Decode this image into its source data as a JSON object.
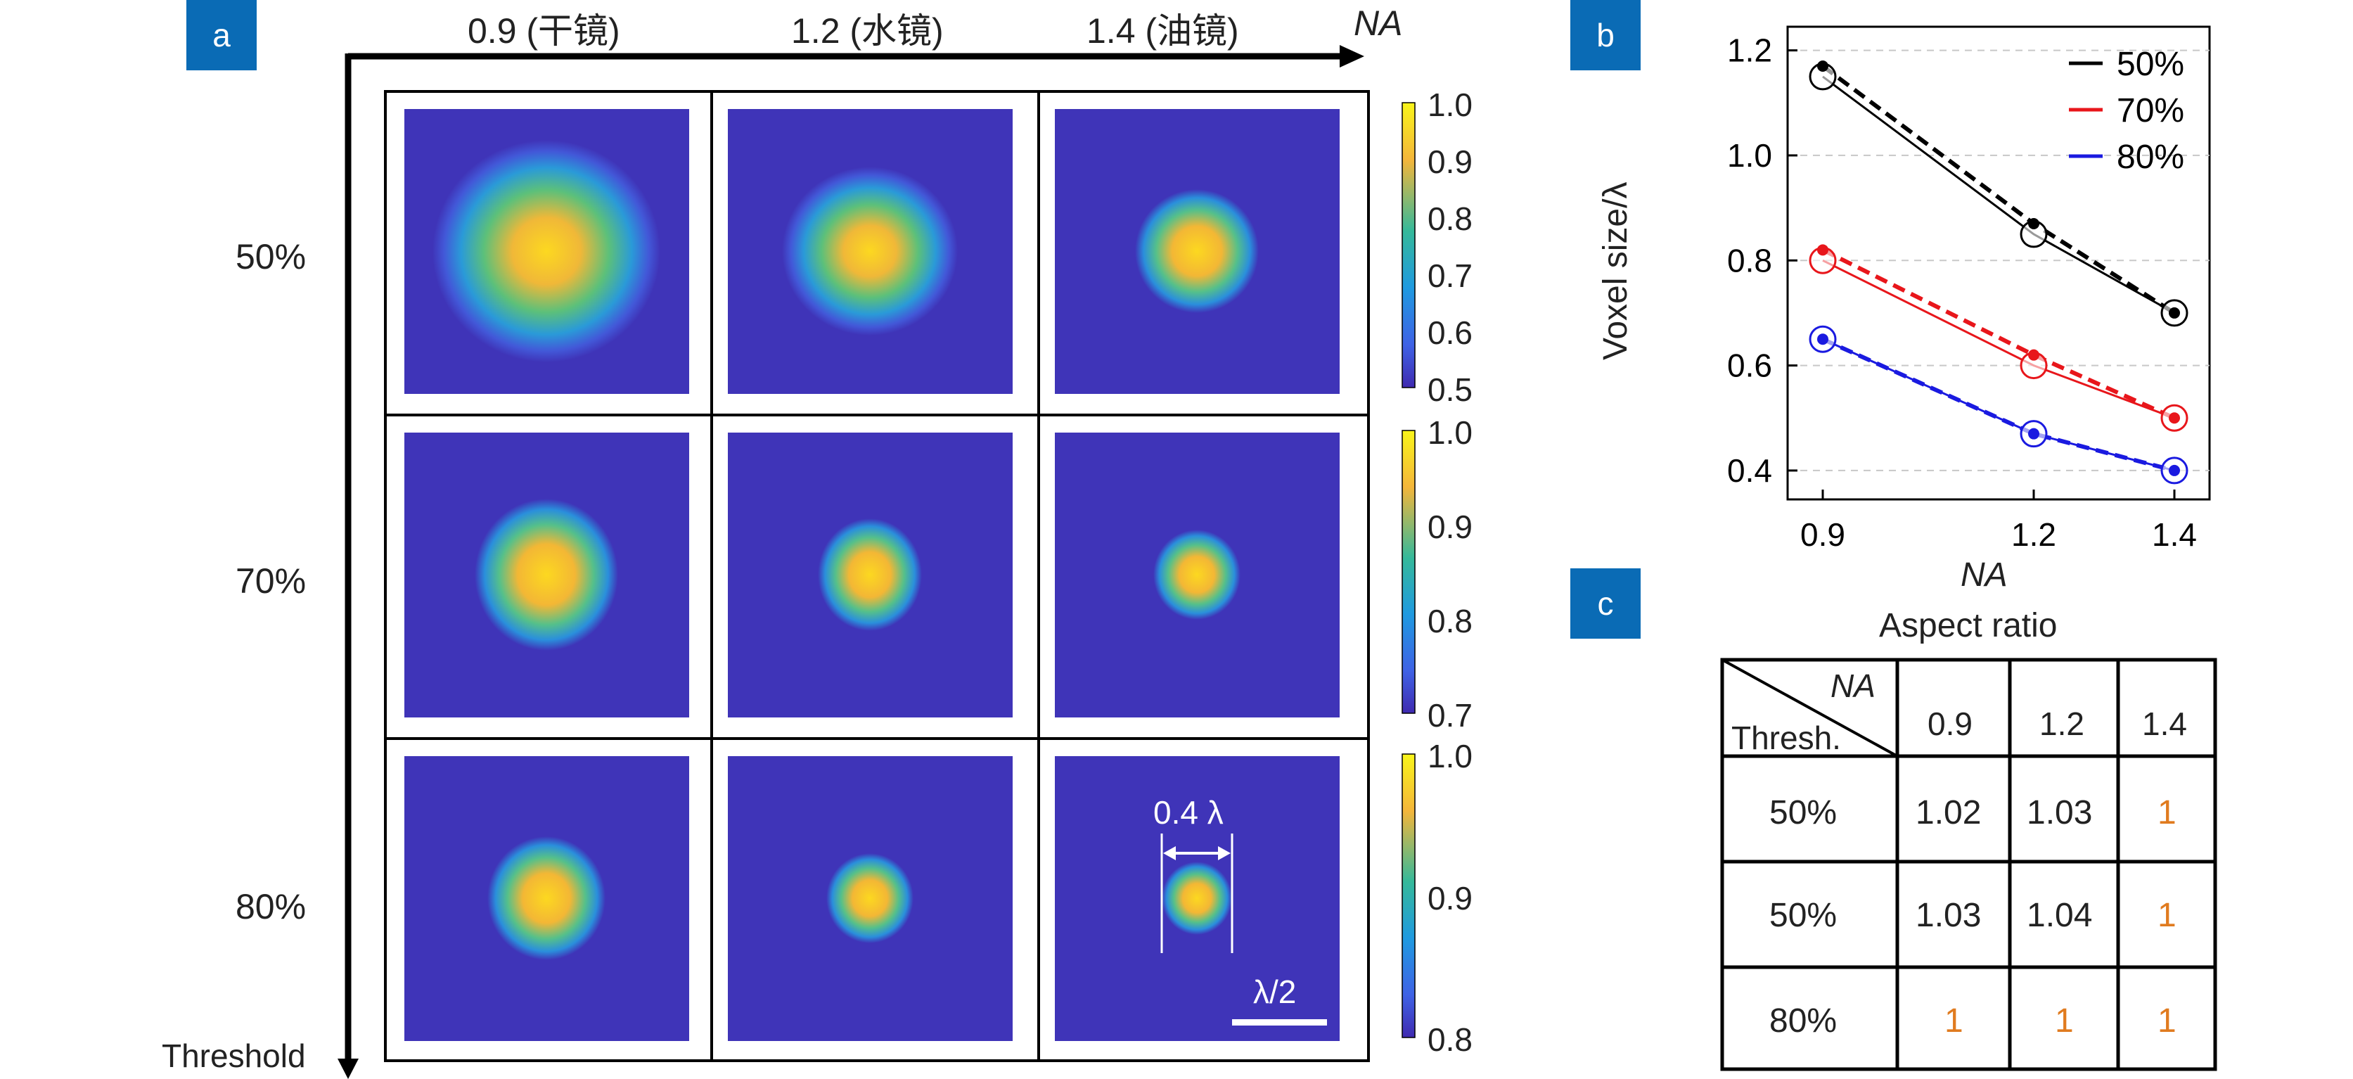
{
  "colors": {
    "tag_bg": "#0a6bb5",
    "black_series": "#000000",
    "red_series": "#e8161b",
    "blue_series": "#1a1ae0",
    "orange_text": "#e07b1f",
    "map_bg": "#3f34b8"
  },
  "panel_a": {
    "tag": "a",
    "axis_x_label": "NA",
    "axis_y_label": "Threshold",
    "columns": [
      "0.9 (干镜)",
      "1.2 (水镜)",
      "1.4 (油镜)"
    ],
    "rows": [
      "50%",
      "70%",
      "80%"
    ],
    "annotation_width": "0.4 λ",
    "scale_bar_label": "λ/2",
    "colorbars": [
      {
        "ticks": [
          "1.0",
          "0.9",
          "0.8",
          "0.7",
          "0.6",
          "0.5"
        ]
      },
      {
        "ticks": [
          "1.0",
          "0.9",
          "0.8",
          "0.7"
        ]
      },
      {
        "ticks": [
          "1.0",
          "0.9",
          "0.8"
        ]
      }
    ]
  },
  "chart_data": [
    {
      "type": "line",
      "tag": "b",
      "xlabel": "NA",
      "ylabel": "Voxel size/λ",
      "x": [
        0.9,
        1.2,
        1.4
      ],
      "xticks": [
        "0.9",
        "1.2",
        "1.4"
      ],
      "yticks": [
        "0.4",
        "0.6",
        "0.8",
        "1.0",
        "1.2"
      ],
      "xlim": [
        0.85,
        1.45
      ],
      "ylim": [
        0.345,
        1.245
      ],
      "legend_position": "top-right",
      "grid": "horizontal dashed",
      "series": [
        {
          "name": "50%",
          "color": "#000000",
          "solid_open_markers": [
            1.15,
            0.85,
            0.7
          ],
          "dashed_filled_markers": [
            1.17,
            0.87,
            0.7
          ]
        },
        {
          "name": "70%",
          "color": "#e8161b",
          "solid_open_markers": [
            0.8,
            0.6,
            0.5
          ],
          "dashed_filled_markers": [
            0.82,
            0.62,
            0.5
          ]
        },
        {
          "name": "80%",
          "color": "#1a1ae0",
          "solid_open_markers": [
            0.65,
            0.47,
            0.4
          ],
          "dashed_filled_markers": [
            0.65,
            0.47,
            0.4
          ]
        }
      ]
    },
    {
      "type": "table",
      "tag": "c",
      "title": "Aspect ratio",
      "corner_top": "NA",
      "corner_bottom": "Thresh.",
      "columns": [
        "0.9",
        "1.2",
        "1.4"
      ],
      "rows": [
        {
          "label": "50%",
          "values": [
            "1.02",
            "1.03",
            "1"
          ]
        },
        {
          "label": "50%",
          "values": [
            "1.03",
            "1.04",
            "1"
          ]
        },
        {
          "label": "80%",
          "values": [
            "1",
            "1",
            "1"
          ]
        }
      ]
    }
  ]
}
